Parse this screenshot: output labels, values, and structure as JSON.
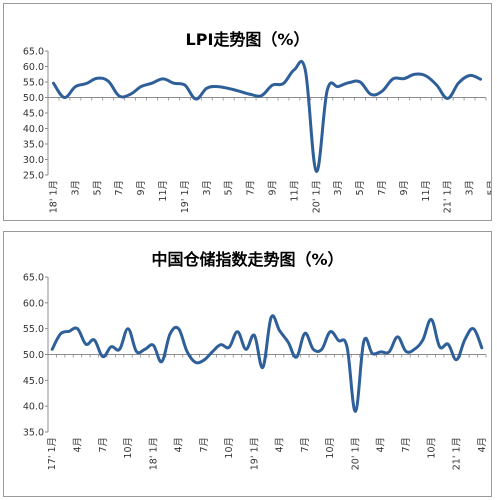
{
  "chart_data": [
    {
      "type": "line",
      "title": "LPI走势图（%）",
      "ylim": [
        25.0,
        65.0
      ],
      "y_ticks": [
        "25.0",
        "30.0",
        "35.0",
        "40.0",
        "45.0",
        "50.0",
        "55.0",
        "60.0",
        "65.0"
      ],
      "x_tick_labels": [
        "18' 1月",
        "3月",
        "5月",
        "7月",
        "9月",
        "11月",
        "19' 1月",
        "3月",
        "5月",
        "7月",
        "9月",
        "11月",
        "20' 1月",
        "3月",
        "5月",
        "7月",
        "9月",
        "11月",
        "21' 1月",
        "3月",
        "5月"
      ],
      "grid": false,
      "series": [
        {
          "color": "#2e5f99",
          "values": [
            54.6,
            50.0,
            53.5,
            54.5,
            56.2,
            55.3,
            50.5,
            51.0,
            53.5,
            54.6,
            56.0,
            54.6,
            54.0,
            49.5,
            53.0,
            53.5,
            52.9,
            52.0,
            51.0,
            50.6,
            54.0,
            54.5,
            59.0,
            58.8,
            26.2,
            52.3,
            53.5,
            54.8,
            55.0,
            51.0,
            52.0,
            56.0,
            56.1,
            57.5,
            57.0,
            54.0,
            49.7,
            54.7,
            57.1,
            55.9
          ]
        }
      ]
    },
    {
      "type": "line",
      "title": "中国仓储指数走势图（%）",
      "ylim": [
        35.0,
        65.0
      ],
      "y_ticks": [
        "35.0",
        "40.0",
        "45.0",
        "50.0",
        "55.0",
        "60.0",
        "65.0"
      ],
      "x_tick_labels": [
        "17' 1月",
        "4月",
        "7月",
        "10月",
        "18' 1月",
        "4月",
        "7月",
        "10月",
        "19' 1月",
        "4月",
        "7月",
        "10月",
        "20' 1月",
        "4月",
        "7月",
        "10月",
        "21' 1月",
        "4月"
      ],
      "grid": false,
      "series": [
        {
          "color": "#2e5f99",
          "values": [
            51.0,
            54.0,
            54.5,
            55.0,
            52.0,
            52.8,
            49.6,
            51.5,
            51.0,
            55.0,
            50.6,
            51.0,
            51.8,
            48.6,
            54.0,
            55.0,
            50.6,
            48.5,
            48.9,
            50.5,
            51.9,
            51.4,
            54.4,
            51.0,
            53.7,
            47.5,
            57.2,
            54.6,
            52.4,
            49.5,
            54.1,
            51.0,
            51.0,
            54.4,
            52.7,
            51.5,
            39.0,
            52.6,
            50.2,
            50.5,
            50.5,
            53.4,
            50.6,
            51.0,
            52.8,
            56.8,
            51.5,
            52.0,
            49.0,
            52.9,
            55.0,
            51.3
          ]
        }
      ]
    }
  ]
}
